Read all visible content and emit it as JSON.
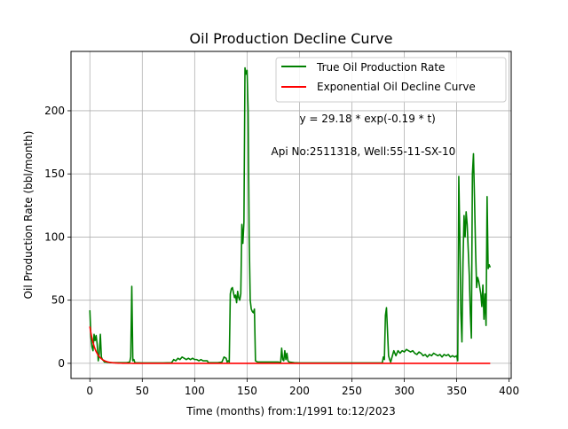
{
  "chart_data": {
    "type": "line",
    "title": "Oil Production Decline Curve",
    "xlabel": "Time (months) from:1/1991 to:12/2023",
    "ylabel": "Oil Production Rate (bbl/month)",
    "xlim": [
      -18,
      402
    ],
    "ylim": [
      -12,
      247
    ],
    "x_ticks": [
      0,
      50,
      100,
      150,
      200,
      250,
      300,
      350,
      400
    ],
    "y_ticks": [
      0,
      50,
      100,
      150,
      200
    ],
    "grid": true,
    "legend_position": "top-right",
    "annotations": [
      {
        "text": "y = 29.18 * exp(-0.19 * t)",
        "x": 200,
        "y": 191
      },
      {
        "text": "Api No:2511318, Well:55-11-SX-10",
        "x": 173,
        "y": 165
      }
    ],
    "series": [
      {
        "name": "True Oil Production Rate",
        "color": "#008000",
        "points": [
          [
            0,
            42
          ],
          [
            1,
            21
          ],
          [
            2,
            13
          ],
          [
            3,
            10
          ],
          [
            4,
            23
          ],
          [
            5,
            18
          ],
          [
            6,
            22
          ],
          [
            7,
            15
          ],
          [
            8,
            2
          ],
          [
            9,
            8
          ],
          [
            10,
            23
          ],
          [
            11,
            5
          ],
          [
            12,
            3
          ],
          [
            13,
            2
          ],
          [
            14,
            1
          ],
          [
            15,
            1
          ],
          [
            20,
            0.5
          ],
          [
            25,
            0.5
          ],
          [
            30,
            0.5
          ],
          [
            35,
            0.5
          ],
          [
            38,
            1
          ],
          [
            39,
            5
          ],
          [
            40,
            61
          ],
          [
            41,
            2
          ],
          [
            42,
            3
          ],
          [
            43,
            0.5
          ],
          [
            50,
            0.3
          ],
          [
            60,
            0.3
          ],
          [
            70,
            0.3
          ],
          [
            78,
            0.5
          ],
          [
            80,
            3
          ],
          [
            82,
            2
          ],
          [
            84,
            4
          ],
          [
            86,
            3
          ],
          [
            88,
            5
          ],
          [
            90,
            4
          ],
          [
            92,
            3
          ],
          [
            94,
            4
          ],
          [
            96,
            3
          ],
          [
            98,
            4
          ],
          [
            100,
            3
          ],
          [
            102,
            3
          ],
          [
            104,
            2
          ],
          [
            106,
            3
          ],
          [
            108,
            2
          ],
          [
            110,
            2
          ],
          [
            112,
            2
          ],
          [
            113,
            0.5
          ],
          [
            118,
            0.5
          ],
          [
            122,
            0.5
          ],
          [
            126,
            1
          ],
          [
            128,
            5
          ],
          [
            130,
            4
          ],
          [
            131,
            1
          ],
          [
            132,
            2
          ],
          [
            133,
            1
          ],
          [
            134,
            55
          ],
          [
            135,
            59
          ],
          [
            136,
            60
          ],
          [
            137,
            56
          ],
          [
            138,
            52
          ],
          [
            139,
            54
          ],
          [
            140,
            48
          ],
          [
            141,
            57
          ],
          [
            142,
            52
          ],
          [
            143,
            50
          ],
          [
            144,
            55
          ],
          [
            145,
            110
          ],
          [
            146,
            95
          ],
          [
            147,
            112
          ],
          [
            148,
            234
          ],
          [
            149,
            229
          ],
          [
            150,
            232
          ],
          [
            151,
            200
          ],
          [
            152,
            100
          ],
          [
            153,
            50
          ],
          [
            154,
            43
          ],
          [
            155,
            41
          ],
          [
            156,
            40
          ],
          [
            157,
            43
          ],
          [
            158,
            2
          ],
          [
            160,
            1
          ],
          [
            165,
            1
          ],
          [
            170,
            1
          ],
          [
            175,
            1
          ],
          [
            180,
            1
          ],
          [
            182,
            0.5
          ],
          [
            183,
            12
          ],
          [
            184,
            3
          ],
          [
            185,
            2
          ],
          [
            186,
            10
          ],
          [
            187,
            3
          ],
          [
            188,
            8
          ],
          [
            189,
            2
          ],
          [
            190,
            1
          ],
          [
            195,
            0.5
          ],
          [
            200,
            0.3
          ],
          [
            220,
            0.3
          ],
          [
            240,
            0.3
          ],
          [
            260,
            0.3
          ],
          [
            279,
            0.3
          ],
          [
            280,
            5
          ],
          [
            281,
            3
          ],
          [
            282,
            38
          ],
          [
            283,
            44
          ],
          [
            284,
            25
          ],
          [
            285,
            6
          ],
          [
            286,
            3
          ],
          [
            287,
            1
          ],
          [
            288,
            4
          ],
          [
            290,
            10
          ],
          [
            292,
            6
          ],
          [
            294,
            10
          ],
          [
            296,
            8
          ],
          [
            298,
            10
          ],
          [
            300,
            9
          ],
          [
            302,
            11
          ],
          [
            304,
            10
          ],
          [
            306,
            9
          ],
          [
            308,
            10
          ],
          [
            310,
            8
          ],
          [
            312,
            7
          ],
          [
            314,
            9
          ],
          [
            316,
            8
          ],
          [
            318,
            6
          ],
          [
            320,
            7
          ],
          [
            322,
            5
          ],
          [
            324,
            7
          ],
          [
            326,
            6
          ],
          [
            328,
            8
          ],
          [
            330,
            7
          ],
          [
            332,
            6
          ],
          [
            334,
            7
          ],
          [
            336,
            5
          ],
          [
            338,
            7
          ],
          [
            340,
            6
          ],
          [
            342,
            7
          ],
          [
            344,
            5
          ],
          [
            346,
            6
          ],
          [
            348,
            5
          ],
          [
            350,
            6
          ],
          [
            351,
            2
          ],
          [
            352,
            148
          ],
          [
            353,
            100
          ],
          [
            354,
            40
          ],
          [
            355,
            17
          ],
          [
            356,
            80
          ],
          [
            357,
            117
          ],
          [
            358,
            100
          ],
          [
            359,
            120
          ],
          [
            360,
            110
          ],
          [
            361,
            90
          ],
          [
            362,
            70
          ],
          [
            363,
            40
          ],
          [
            364,
            20
          ],
          [
            365,
            150
          ],
          [
            366,
            166
          ],
          [
            367,
            130
          ],
          [
            368,
            90
          ],
          [
            369,
            60
          ],
          [
            370,
            68
          ],
          [
            371,
            65
          ],
          [
            372,
            60
          ],
          [
            373,
            55
          ],
          [
            374,
            45
          ],
          [
            375,
            62
          ],
          [
            376,
            35
          ],
          [
            377,
            55
          ],
          [
            378,
            30
          ],
          [
            379,
            132
          ],
          [
            380,
            75
          ],
          [
            381,
            78
          ],
          [
            382,
            76
          ]
        ]
      },
      {
        "name": "Exponential Oil Decline Curve",
        "color": "#ff0000",
        "model": {
          "a": 29.18,
          "b": 0.19,
          "t_start": 0,
          "t_end": 382
        }
      }
    ]
  }
}
